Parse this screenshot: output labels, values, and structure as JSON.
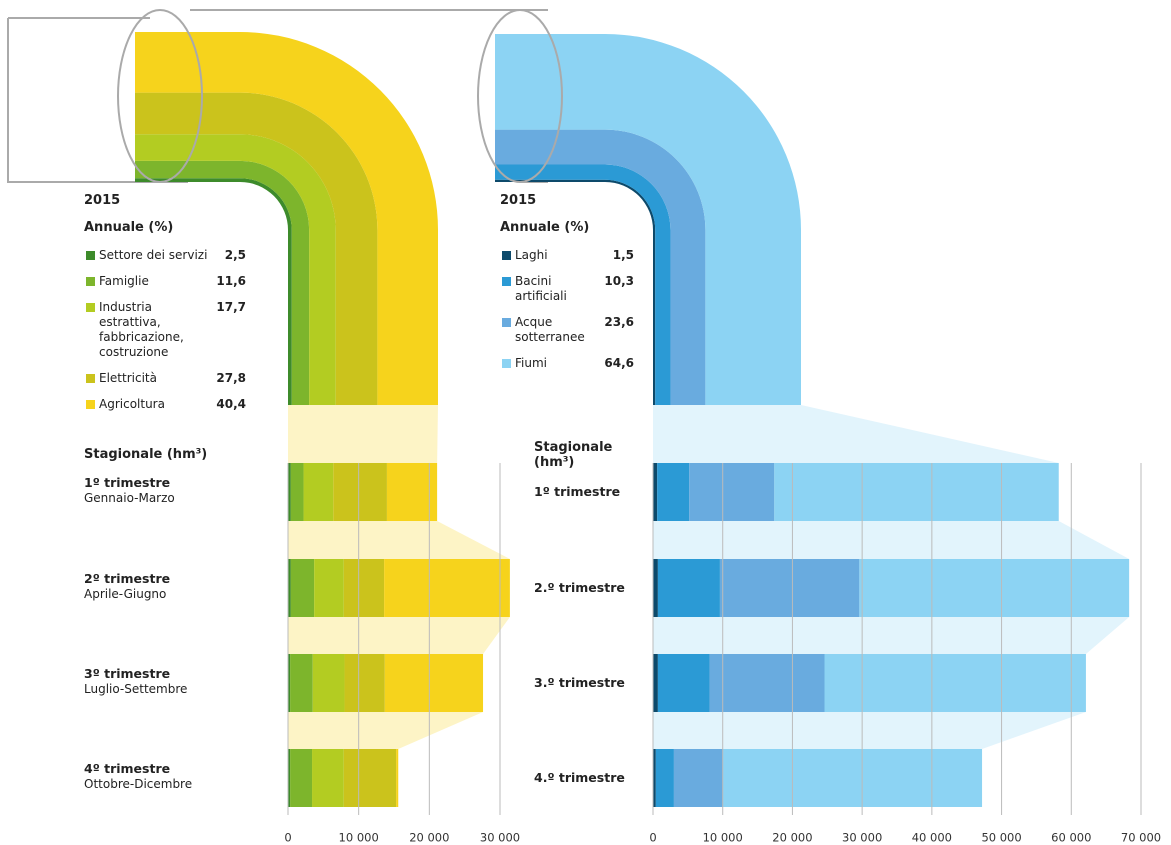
{
  "chart_data": [
    {
      "type": "bar",
      "orientation": "horizontal",
      "stacked": true,
      "year": "2015",
      "annual_title": "Annuale (%)",
      "seasonal_title": "Stagionale (hm³)",
      "categories": [
        "1º trimestre",
        "2º trimestre",
        "3º trimestre",
        "4º trimestre"
      ],
      "category_sublabels": [
        "Gennaio-Marzo",
        "Aprile-Giugno",
        "Luglio-Settembre",
        "Ottobre-Dicembre"
      ],
      "xlim": [
        0,
        30000
      ],
      "xticks": [
        0,
        {
          "value": 10000,
          "label": "10 000"
        },
        {
          "value": 20000,
          "label": "20 000"
        },
        {
          "value": 30000,
          "label": "30 000"
        }
      ],
      "grid": true,
      "series": [
        {
          "name": "Settore dei servizi",
          "color": "#3d8b2b",
          "annual": 2.5,
          "annual_label": "2,5",
          "values": [
            400,
            400,
            300,
            300
          ]
        },
        {
          "name": "Famiglie",
          "color": "#7db52c",
          "annual": 11.6,
          "annual_label": "11,6",
          "values": [
            1800,
            3300,
            3200,
            3100
          ]
        },
        {
          "name": "Industria estrattiva, fabbricazione, costruzione",
          "color": "#b3cc22",
          "annual": 17.7,
          "annual_label": "17,7",
          "values": [
            4200,
            4200,
            4500,
            4500
          ]
        },
        {
          "name": "Elettricità",
          "color": "#cbc31c",
          "annual": 27.8,
          "annual_label": "27,8",
          "values": [
            7600,
            5700,
            5700,
            7400
          ]
        },
        {
          "name": "Agricoltura",
          "color": "#f6d31c",
          "annual": 40.4,
          "annual_label": "40,4",
          "values": [
            7100,
            17800,
            13900,
            300
          ]
        }
      ]
    },
    {
      "type": "bar",
      "orientation": "horizontal",
      "stacked": true,
      "year": "2015",
      "annual_title": "Annuale (%)",
      "seasonal_title": "Stagionale (hm³)",
      "categories": [
        "1º trimestre",
        "2.º trimestre",
        "3.º trimestre",
        "4.º trimestre"
      ],
      "xlim": [
        0,
        70000
      ],
      "xticks": [
        0,
        {
          "value": 10000,
          "label": "10 000"
        },
        {
          "value": 20000,
          "label": "20 000"
        },
        {
          "value": 30000,
          "label": "30 000"
        },
        {
          "value": 40000,
          "label": "40 000"
        },
        {
          "value": 50000,
          "label": "50 000"
        },
        {
          "value": 60000,
          "label": "60 000"
        },
        {
          "value": 70000,
          "label": "70 000"
        }
      ],
      "grid": true,
      "series": [
        {
          "name": "Laghi",
          "color": "#0d4a6b",
          "annual": 1.5,
          "annual_label": "1,5",
          "values": [
            600,
            700,
            700,
            400
          ]
        },
        {
          "name": "Bacini artificiali",
          "color": "#2b9ad5",
          "annual": 10.3,
          "annual_label": "10,3",
          "values": [
            4600,
            8900,
            7400,
            2600
          ]
        },
        {
          "name": "Acque sotterranee",
          "color": "#69abdf",
          "annual": 23.6,
          "annual_label": "23,6",
          "values": [
            12200,
            20000,
            16500,
            7000
          ]
        },
        {
          "name": "Fiumi",
          "color": "#8cd3f3",
          "annual": 64.6,
          "annual_label": "64,6",
          "values": [
            40800,
            38700,
            37500,
            37200
          ]
        }
      ]
    }
  ]
}
